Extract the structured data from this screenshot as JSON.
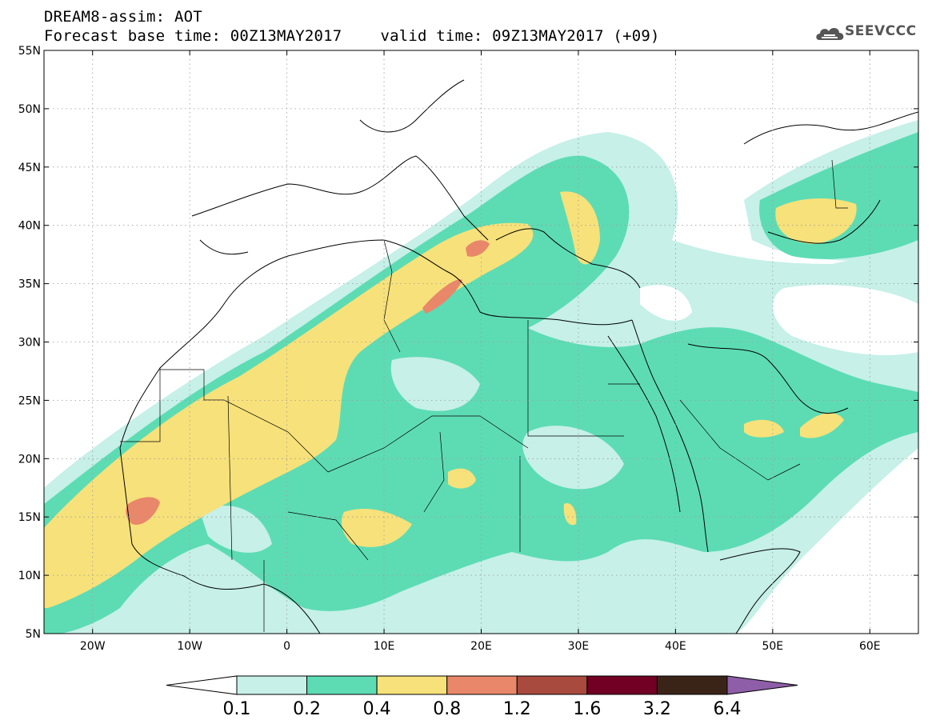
{
  "title": {
    "line1": "DREAM8-assim: AOT",
    "base_time": "Forecast base time: 00Z13MAY2017",
    "valid_time": "valid time: 09Z13MAY2017 (+09)"
  },
  "logo": {
    "text": "SEEVCCC",
    "icon": "cloud-icon"
  },
  "axes": {
    "lon_range": [
      -25,
      65
    ],
    "lat_range": [
      5,
      55
    ],
    "lon_ticks": [
      {
        "value": -20,
        "label": "20W"
      },
      {
        "value": -10,
        "label": "10W"
      },
      {
        "value": 0,
        "label": "0"
      },
      {
        "value": 10,
        "label": "10E"
      },
      {
        "value": 20,
        "label": "20E"
      },
      {
        "value": 30,
        "label": "30E"
      },
      {
        "value": 40,
        "label": "40E"
      },
      {
        "value": 50,
        "label": "50E"
      },
      {
        "value": 60,
        "label": "60E"
      }
    ],
    "lat_ticks": [
      {
        "value": 55,
        "label": "55N"
      },
      {
        "value": 50,
        "label": "50N"
      },
      {
        "value": 45,
        "label": "45N"
      },
      {
        "value": 40,
        "label": "40N"
      },
      {
        "value": 35,
        "label": "35N"
      },
      {
        "value": 30,
        "label": "30N"
      },
      {
        "value": 25,
        "label": "25N"
      },
      {
        "value": 20,
        "label": "20N"
      },
      {
        "value": 15,
        "label": "15N"
      },
      {
        "value": 10,
        "label": "10N"
      },
      {
        "value": 5,
        "label": "5N"
      }
    ],
    "grid": true
  },
  "colorbar": {
    "colors": [
      "#c6f0e8",
      "#5ddcb4",
      "#f7e17a",
      "#e9876a",
      "#a94a3e",
      "#720025",
      "#3a2418"
    ],
    "left_arrow_color": "#ffffff",
    "right_arrow_color": "#8e5fa8",
    "labels": [
      "0.1",
      "0.2",
      "0.4",
      "0.8",
      "1.2",
      "1.6",
      "3.2",
      "6.4"
    ]
  }
}
